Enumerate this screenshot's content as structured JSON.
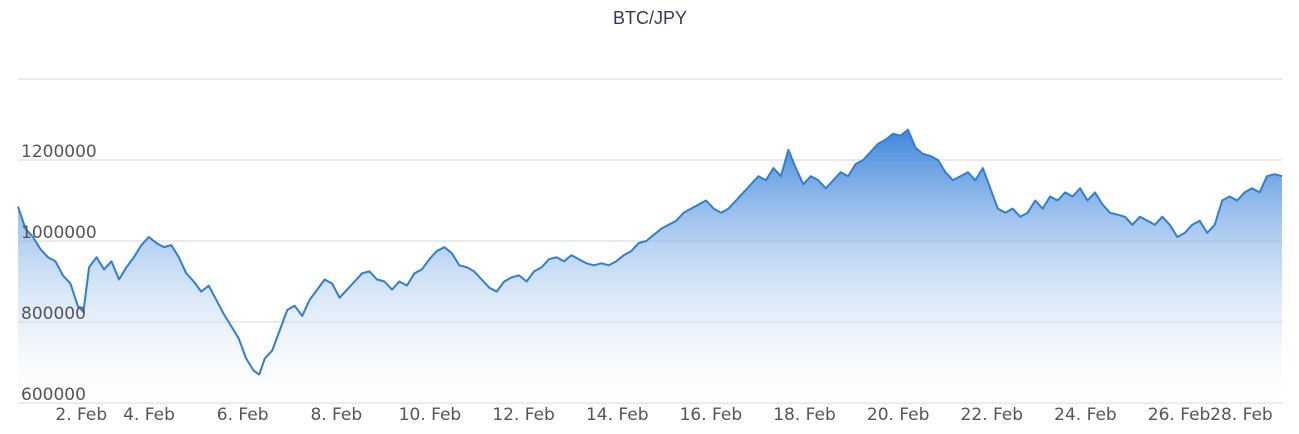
{
  "chart_data": {
    "type": "area",
    "title": "BTC/JPY",
    "xlabel": "",
    "ylabel": "",
    "x_start": "2018-02-01",
    "x_end": "2018-02-28",
    "x_ticks": [
      "2. Feb",
      "4. Feb",
      "6. Feb",
      "8. Feb",
      "10. Feb",
      "12. Feb",
      "14. Feb",
      "16. Feb",
      "18. Feb",
      "20. Feb",
      "22. Feb",
      "24. Feb",
      "26. Feb",
      "28. Feb"
    ],
    "y_ticks": [
      "600000",
      "800000",
      "1000000",
      "1200000"
    ],
    "ylim": [
      600000,
      1400000
    ],
    "grid": true,
    "legend": "none",
    "colors": {
      "line": "#2f7ed8",
      "fill_top": "#3f86da",
      "fill_bottom": "#ffffff",
      "grid": "#d6d6d6",
      "title": "#333a56"
    },
    "series": [
      {
        "values": [
          [
            1.0,
            1085000
          ],
          [
            1.2,
            1030000
          ],
          [
            1.4,
            1010000
          ],
          [
            1.6,
            980000
          ],
          [
            1.8,
            960000
          ],
          [
            2.0,
            950000
          ],
          [
            2.2,
            915000
          ],
          [
            2.4,
            895000
          ],
          [
            2.6,
            840000
          ],
          [
            2.75,
            825000
          ],
          [
            2.9,
            935000
          ],
          [
            3.1,
            960000
          ],
          [
            3.3,
            930000
          ],
          [
            3.5,
            950000
          ],
          [
            3.7,
            905000
          ],
          [
            3.9,
            935000
          ],
          [
            4.1,
            960000
          ],
          [
            4.3,
            990000
          ],
          [
            4.5,
            1010000
          ],
          [
            4.7,
            995000
          ],
          [
            4.9,
            985000
          ],
          [
            5.1,
            990000
          ],
          [
            5.3,
            960000
          ],
          [
            5.5,
            920000
          ],
          [
            5.7,
            900000
          ],
          [
            5.9,
            875000
          ],
          [
            6.1,
            890000
          ],
          [
            6.3,
            855000
          ],
          [
            6.5,
            820000
          ],
          [
            6.7,
            790000
          ],
          [
            6.9,
            760000
          ],
          [
            7.1,
            710000
          ],
          [
            7.3,
            680000
          ],
          [
            7.45,
            670000
          ],
          [
            7.6,
            710000
          ],
          [
            7.8,
            730000
          ],
          [
            8.0,
            780000
          ],
          [
            8.2,
            830000
          ],
          [
            8.4,
            840000
          ],
          [
            8.6,
            815000
          ],
          [
            8.8,
            855000
          ],
          [
            9.0,
            880000
          ],
          [
            9.2,
            905000
          ],
          [
            9.4,
            895000
          ],
          [
            9.6,
            860000
          ],
          [
            9.8,
            880000
          ],
          [
            10.0,
            900000
          ],
          [
            10.2,
            920000
          ],
          [
            10.4,
            925000
          ],
          [
            10.6,
            905000
          ],
          [
            10.8,
            900000
          ],
          [
            11.0,
            880000
          ],
          [
            11.2,
            900000
          ],
          [
            11.4,
            890000
          ],
          [
            11.6,
            920000
          ],
          [
            11.8,
            930000
          ],
          [
            12.0,
            955000
          ],
          [
            12.2,
            975000
          ],
          [
            12.4,
            985000
          ],
          [
            12.6,
            970000
          ],
          [
            12.8,
            940000
          ],
          [
            13.0,
            935000
          ],
          [
            13.2,
            925000
          ],
          [
            13.4,
            905000
          ],
          [
            13.6,
            885000
          ],
          [
            13.8,
            875000
          ],
          [
            14.0,
            900000
          ],
          [
            14.2,
            910000
          ],
          [
            14.4,
            915000
          ],
          [
            14.6,
            900000
          ],
          [
            14.8,
            925000
          ],
          [
            15.0,
            935000
          ],
          [
            15.2,
            955000
          ],
          [
            15.4,
            960000
          ],
          [
            15.6,
            950000
          ],
          [
            15.8,
            965000
          ],
          [
            16.0,
            955000
          ],
          [
            16.2,
            945000
          ],
          [
            16.4,
            940000
          ],
          [
            16.6,
            945000
          ],
          [
            16.8,
            940000
          ],
          [
            17.0,
            950000
          ],
          [
            17.2,
            965000
          ],
          [
            17.4,
            975000
          ],
          [
            17.6,
            995000
          ],
          [
            17.8,
            1000000
          ],
          [
            18.0,
            1015000
          ],
          [
            18.2,
            1030000
          ],
          [
            18.4,
            1040000
          ],
          [
            18.6,
            1050000
          ],
          [
            18.8,
            1070000
          ],
          [
            19.0,
            1080000
          ],
          [
            19.2,
            1090000
          ],
          [
            19.4,
            1100000
          ],
          [
            19.6,
            1080000
          ],
          [
            19.8,
            1070000
          ],
          [
            20.0,
            1080000
          ],
          [
            20.2,
            1100000
          ],
          [
            20.4,
            1120000
          ],
          [
            20.6,
            1140000
          ],
          [
            20.8,
            1160000
          ],
          [
            21.0,
            1150000
          ],
          [
            21.2,
            1180000
          ],
          [
            21.4,
            1160000
          ],
          [
            21.6,
            1225000
          ],
          [
            21.8,
            1180000
          ],
          [
            22.0,
            1140000
          ],
          [
            22.2,
            1160000
          ],
          [
            22.4,
            1150000
          ],
          [
            22.6,
            1130000
          ],
          [
            22.8,
            1150000
          ],
          [
            23.0,
            1170000
          ],
          [
            23.2,
            1160000
          ],
          [
            23.4,
            1190000
          ],
          [
            23.6,
            1200000
          ],
          [
            23.8,
            1220000
          ],
          [
            24.0,
            1240000
          ],
          [
            24.2,
            1250000
          ],
          [
            24.4,
            1265000
          ],
          [
            24.6,
            1260000
          ],
          [
            24.8,
            1275000
          ],
          [
            25.0,
            1230000
          ],
          [
            25.2,
            1215000
          ],
          [
            25.4,
            1210000
          ],
          [
            25.6,
            1200000
          ],
          [
            25.8,
            1170000
          ],
          [
            26.0,
            1150000
          ],
          [
            26.2,
            1160000
          ],
          [
            26.4,
            1170000
          ],
          [
            26.6,
            1150000
          ],
          [
            26.8,
            1180000
          ],
          [
            27.0,
            1130000
          ],
          [
            27.2,
            1080000
          ],
          [
            27.4,
            1070000
          ],
          [
            27.6,
            1080000
          ],
          [
            27.8,
            1060000
          ],
          [
            28.0,
            1070000
          ],
          [
            28.2,
            1100000
          ],
          [
            28.4,
            1080000
          ],
          [
            28.6,
            1110000
          ],
          [
            28.8,
            1100000
          ],
          [
            29.0,
            1120000
          ],
          [
            29.2,
            1110000
          ],
          [
            29.4,
            1130000
          ],
          [
            29.6,
            1100000
          ],
          [
            29.8,
            1120000
          ],
          [
            30.0,
            1090000
          ],
          [
            30.2,
            1070000
          ],
          [
            30.4,
            1065000
          ],
          [
            30.6,
            1060000
          ],
          [
            30.8,
            1040000
          ],
          [
            31.0,
            1060000
          ],
          [
            31.2,
            1050000
          ],
          [
            31.4,
            1040000
          ],
          [
            31.6,
            1060000
          ],
          [
            31.8,
            1040000
          ],
          [
            32.0,
            1010000
          ],
          [
            32.2,
            1020000
          ],
          [
            32.4,
            1040000
          ],
          [
            32.6,
            1050000
          ],
          [
            32.8,
            1020000
          ],
          [
            33.0,
            1040000
          ],
          [
            33.2,
            1100000
          ],
          [
            33.4,
            1110000
          ],
          [
            33.6,
            1100000
          ],
          [
            33.8,
            1120000
          ],
          [
            34.0,
            1130000
          ],
          [
            34.2,
            1120000
          ],
          [
            34.4,
            1160000
          ],
          [
            34.6,
            1165000
          ],
          [
            34.8,
            1160000
          ]
        ]
      }
    ]
  }
}
